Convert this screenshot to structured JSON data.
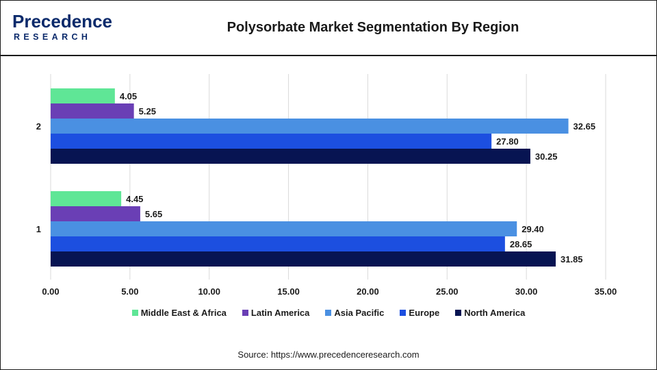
{
  "header": {
    "logo_text": "Precedence",
    "logo_subtext": "RESEARCH",
    "title": "Polysorbate Market Segmentation By Region"
  },
  "footer": {
    "source": "Source: https://www.precedenceresearch.com"
  },
  "colors": {
    "logo": "#0b2a6b"
  },
  "chart_data": {
    "type": "bar",
    "orientation": "horizontal",
    "title": "Polysorbate Market Segmentation By Region",
    "categories": [
      "1",
      "2"
    ],
    "series": [
      {
        "name": "Middle East & Africa",
        "color": "#5fe696",
        "values": [
          4.45,
          4.05
        ],
        "labels": [
          "4.45",
          "4.05"
        ]
      },
      {
        "name": "Latin America",
        "color": "#6a3fb5",
        "values": [
          5.65,
          5.25
        ],
        "labels": [
          "5.65",
          "5.25"
        ]
      },
      {
        "name": "Asia Pacific",
        "color": "#4a90e2",
        "values": [
          29.4,
          32.65
        ],
        "labels": [
          "29.40",
          "32.65"
        ]
      },
      {
        "name": "Europe",
        "color": "#1c4fe0",
        "values": [
          28.65,
          27.8
        ],
        "labels": [
          "28.65",
          "27.80"
        ]
      },
      {
        "name": "North America",
        "color": "#071452",
        "values": [
          31.85,
          30.25
        ],
        "labels": [
          "31.85",
          "30.25"
        ]
      }
    ],
    "xlim": [
      0,
      35
    ],
    "xticks": [
      "0.00",
      "5.00",
      "10.00",
      "15.00",
      "20.00",
      "25.00",
      "30.00",
      "35.00"
    ],
    "grid": true,
    "legend": "bottom"
  }
}
